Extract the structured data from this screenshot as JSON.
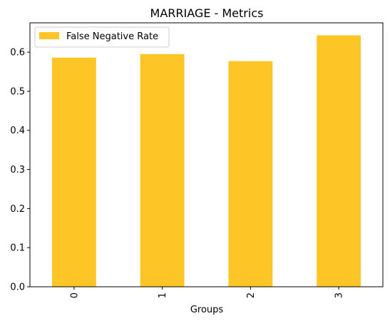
{
  "chart_data": {
    "type": "bar",
    "title": "MARRIAGE - Metrics",
    "xlabel": "Groups",
    "ylabel": "",
    "categories": [
      "0",
      "1",
      "2",
      "3"
    ],
    "series": [
      {
        "name": "False Negative Rate",
        "values": [
          0.586,
          0.595,
          0.577,
          0.643
        ],
        "color": "#fdc626"
      }
    ],
    "ylim": [
      0,
      0.675
    ],
    "yticks": [
      "0.0",
      "0.1",
      "0.2",
      "0.3",
      "0.4",
      "0.5",
      "0.6"
    ],
    "grid": false,
    "legend_position": "top-left",
    "x_tick_rotation": "vertical"
  }
}
